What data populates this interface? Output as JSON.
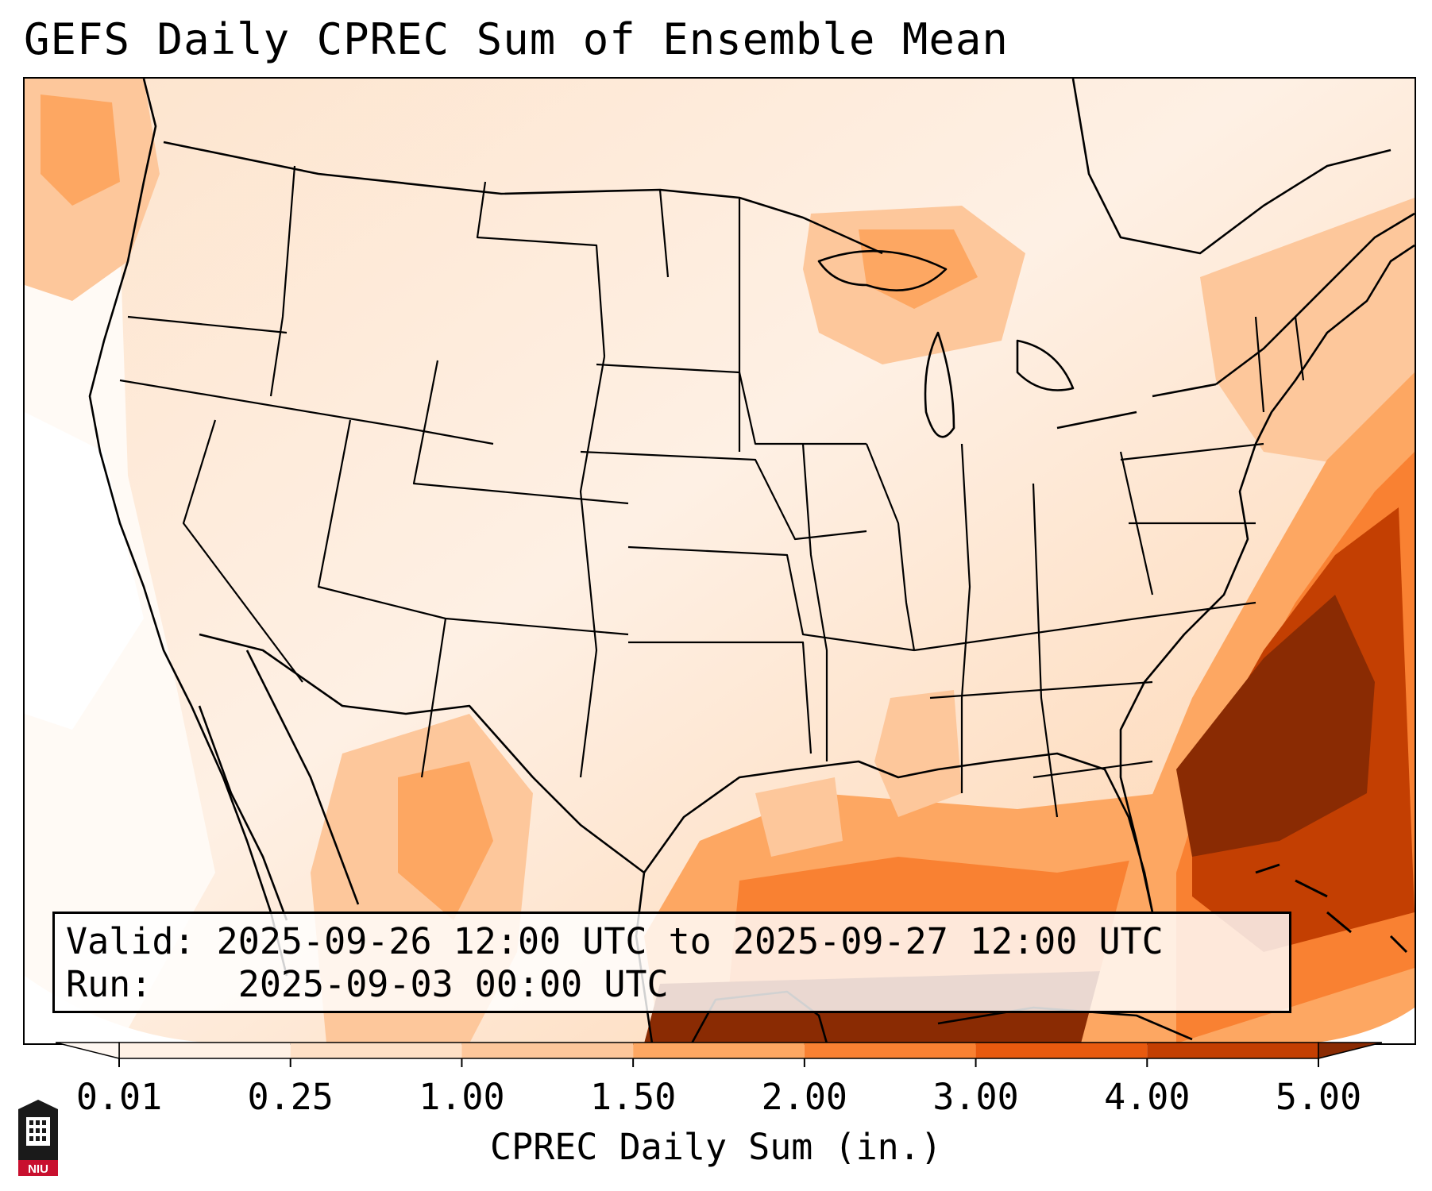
{
  "title": "GEFS Daily CPREC Sum of Ensemble Mean",
  "info": {
    "valid_label": "Valid:",
    "valid_value": "2025-09-26 12:00 UTC to 2025-09-27 12:00 UTC",
    "run_label": "Run:",
    "run_value": "2025-09-03 00:00 UTC"
  },
  "colorbar": {
    "label": "CPREC Daily Sum (in.)",
    "ticks": [
      "0.01",
      "0.25",
      "1.00",
      "1.50",
      "2.00",
      "3.00",
      "4.00",
      "5.00"
    ],
    "bin_colors": [
      "#fff1e5",
      "#fee0c6",
      "#fdc79b",
      "#fda762",
      "#f98132",
      "#e85a0f",
      "#c33f02"
    ],
    "under_color": "#fff8f2",
    "over_color": "#8a2b03"
  },
  "logo": {
    "text": "NIU",
    "colors": {
      "dark": "#1a1a1a",
      "red": "#c8102e"
    }
  }
}
